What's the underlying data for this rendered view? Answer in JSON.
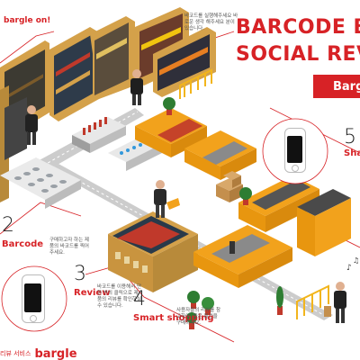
{
  "header": {
    "title_line1": "BARCODE BA",
    "title_line2": "SOCIAL REV",
    "tag": "Bargle"
  },
  "corner_tl": "bargle on!",
  "steps": [
    {
      "num": "2",
      "label": "Barcode",
      "desc": "구매하고자 하는 제품의 바코드를 찍어 주세요."
    },
    {
      "num": "3",
      "label": "Review",
      "desc": "바코드를 이용해서 단 한 번의 클릭으로 제품의 리뷰를 확인하실 수 있습니다."
    },
    {
      "num": "4",
      "label": "Smart shopping",
      "desc": "사용자들의 리뷰를 참고하여, 좋은 물건을 구매하세요."
    },
    {
      "num": "5",
      "label": "Share"
    }
  ],
  "top_desc": "바코드를 실행해주세요 바로운 생각 해주세요 분이 있습니다.",
  "footer": {
    "small": "리뷰 서비스",
    "logo": "bargle"
  },
  "colors": {
    "accent": "#d72226",
    "floor_path": "#cfcfcf",
    "shelf": "#d4a14a",
    "counter": "#f2a21c"
  },
  "icons": {
    "phone": "smartphone-icon",
    "shopper": "shopper-figure-icon",
    "shelf": "store-shelf-icon",
    "plant": "potted-plant-icon"
  }
}
